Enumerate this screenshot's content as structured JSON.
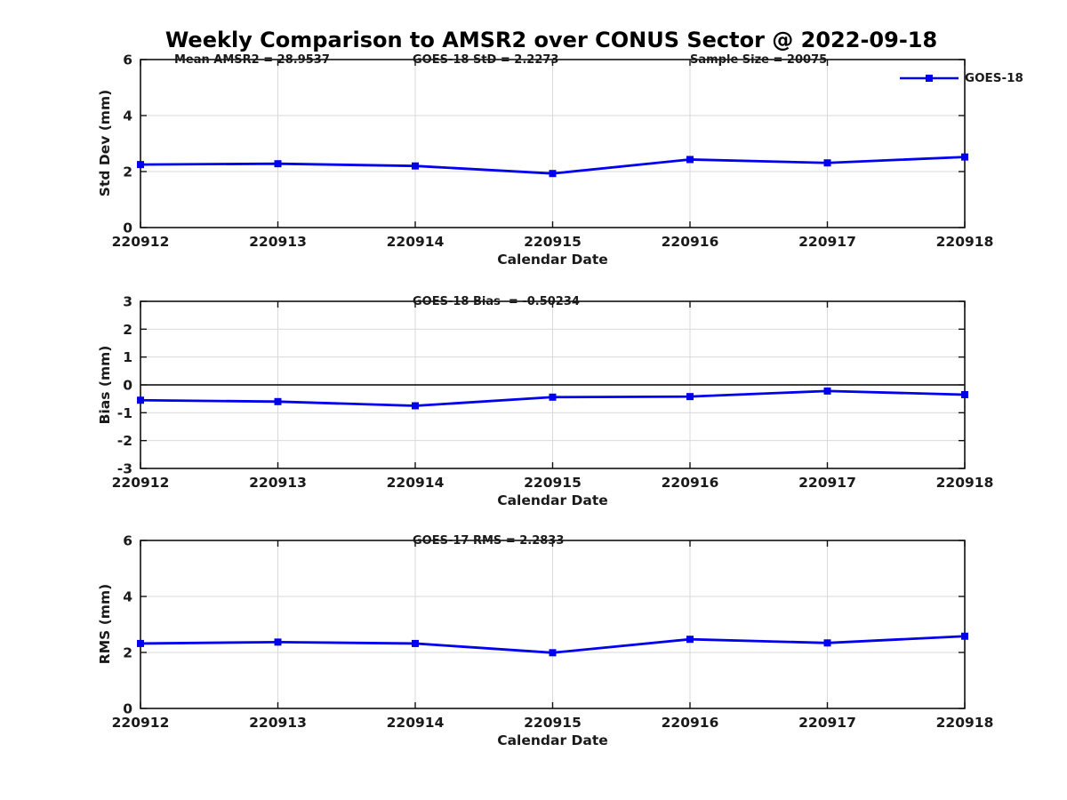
{
  "title": "Weekly Comparison to AMSR2 over CONUS Sector @ 2022-09-18",
  "colors": {
    "line": "#0000ee",
    "grid": "#d9d9d9",
    "axis": "#111111",
    "text": "#1a1a1a"
  },
  "legend": {
    "label": "GOES-18"
  },
  "chart_data": [
    {
      "type": "line",
      "ylabel": "Std Dev (mm)",
      "xlabel": "Calendar Date",
      "ylim": [
        0,
        6
      ],
      "yticks": [
        0,
        2,
        4,
        6
      ],
      "categories": [
        "220912",
        "220913",
        "220914",
        "220915",
        "220916",
        "220917",
        "220918"
      ],
      "series": [
        {
          "name": "GOES-18",
          "values": [
            2.25,
            2.28,
            2.2,
            1.93,
            2.43,
            2.31,
            2.52
          ]
        }
      ],
      "annotations": [
        {
          "text": "Mean AMSR2 = 28.9537"
        },
        {
          "text": "GOES-18 StD = 2.2273"
        },
        {
          "text": "Sample Size = 20075"
        }
      ],
      "grid": true,
      "zero_line": false,
      "legend_position": "top-right-outside"
    },
    {
      "type": "line",
      "ylabel": "Bias (mm)",
      "xlabel": "Calendar Date",
      "ylim": [
        -3,
        3
      ],
      "yticks": [
        -3,
        -2,
        -1,
        0,
        1,
        2,
        3
      ],
      "categories": [
        "220912",
        "220913",
        "220914",
        "220915",
        "220916",
        "220917",
        "220918"
      ],
      "series": [
        {
          "name": "GOES-18",
          "values": [
            -0.55,
            -0.6,
            -0.75,
            -0.44,
            -0.42,
            -0.22,
            -0.35
          ]
        }
      ],
      "annotations": [
        {
          "text": "GOES-18 Bias  = -0.50234"
        }
      ],
      "grid": true,
      "zero_line": true,
      "legend_position": "none"
    },
    {
      "type": "line",
      "ylabel": "RMS (mm)",
      "xlabel": "Calendar Date",
      "ylim": [
        0,
        6
      ],
      "yticks": [
        0,
        2,
        4,
        6
      ],
      "categories": [
        "220912",
        "220913",
        "220914",
        "220915",
        "220916",
        "220917",
        "220918"
      ],
      "series": [
        {
          "name": "GOES-18",
          "values": [
            2.32,
            2.37,
            2.32,
            1.99,
            2.47,
            2.34,
            2.58
          ]
        }
      ],
      "annotations": [
        {
          "text": "GOES-17 RMS = 2.2833"
        }
      ],
      "grid": true,
      "zero_line": false,
      "legend_position": "none"
    }
  ]
}
